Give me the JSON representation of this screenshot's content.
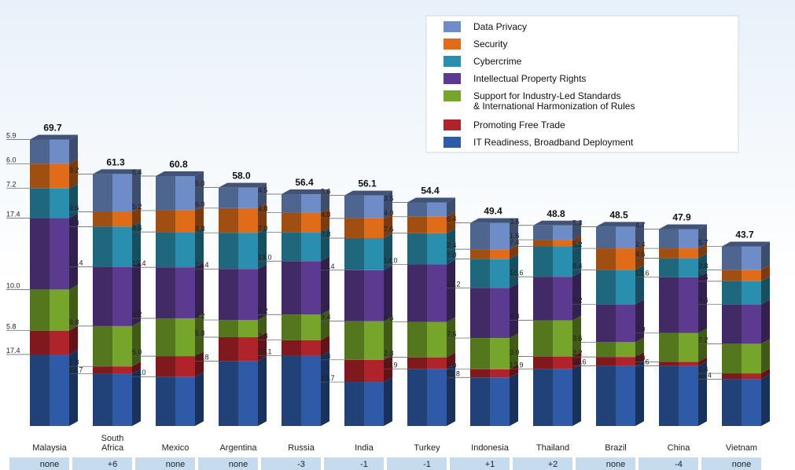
{
  "chart_data": {
    "type": "bar",
    "stacked": true,
    "categories": [
      "Malaysia",
      "South Africa",
      "Mexico",
      "Argentina",
      "Russia",
      "India",
      "Turkey",
      "Indonesia",
      "Thailand",
      "Brazil",
      "China",
      "Vietnam"
    ],
    "totals": [
      "69.7",
      "61.3",
      "60.8",
      "58.0",
      "56.4",
      "56.1",
      "54.4",
      "49.4",
      "48.8",
      "48.5",
      "47.9",
      "43.7"
    ],
    "rank_change": [
      "none",
      "+6",
      "none",
      "none",
      "-3",
      "-1",
      "-1",
      "+1",
      "+2",
      "none",
      "-4",
      "none"
    ],
    "series": [
      {
        "name": "IT Readiness, Broadband Deployment",
        "color": "#2e5aa8",
        "values": [
          "17.4",
          "12.7",
          "12.0",
          "15.8",
          "17.1",
          "10.7",
          "13.9",
          "11.8",
          "13.9",
          "14.6",
          "14.6",
          "11.4"
        ]
      },
      {
        "name": "Promoting Free Trade",
        "color": "#b0232a",
        "values": [
          "5.8",
          "1.8",
          "5.0",
          "5.8",
          "3.8",
          "5.4",
          "2.8",
          "2.0",
          "3.0",
          "2.2",
          "1.0",
          "1.4"
        ]
      },
      {
        "name": "Support for Industry-Led Standards & International Harmonization of Rules",
        "color": "#75a52a",
        "values": [
          "10.0",
          "9.8",
          "9.2",
          "4.2",
          "6.2",
          "9.4",
          "8.6",
          "7.6",
          "8.8",
          "3.6",
          "7.0",
          "7.2"
        ]
      },
      {
        "name": "Intellectual Property Rights",
        "color": "#5b3a8f",
        "values": [
          "17.4",
          "14.4",
          "12.4",
          "12.4",
          "13.0",
          "12.4",
          "14.0",
          "12.2",
          "10.6",
          "9.2",
          "13.6",
          "9.6"
        ]
      },
      {
        "name": "Cybercrime",
        "color": "#2a8fae",
        "values": [
          "7.2",
          "9.8",
          "8.6",
          "8.8",
          "7.0",
          "7.8",
          "7.6",
          "7.0",
          "7.4",
          "8.4",
          "4.6",
          "5.6"
        ]
      },
      {
        "name": "Security",
        "color": "#e06c1a",
        "values": [
          "6.0",
          "3.6",
          "5.2",
          "6.0",
          "4.8",
          "4.8",
          "4.0",
          "2.4",
          "1.6",
          "5.2",
          "2.4",
          "2.8"
        ]
      },
      {
        "name": "Data Privacy",
        "color": "#6d8cc8",
        "values": [
          "5.9",
          "9.2",
          "8.4",
          "5.0",
          "4.5",
          "5.6",
          "3.5",
          "6.4",
          "3.5",
          "5.3",
          "4.7",
          "5.7"
        ]
      }
    ],
    "legend_position": "top-right",
    "grid": false
  }
}
